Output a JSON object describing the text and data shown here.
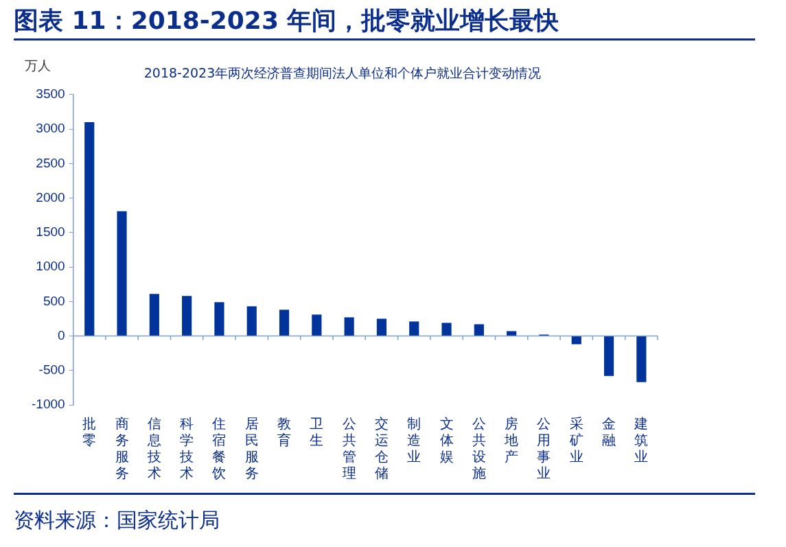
{
  "chart_data": {
    "type": "bar",
    "title": "图表 11：2018-2023 年间，批零就业增长最快",
    "subtitle": "2018-2023年两次经济普查期间法人单位和个体户就业合计变动情况",
    "ylabel": "万人",
    "categories": [
      "批零",
      "商务服务",
      "信息技术",
      "科学技术",
      "住宿餐饮",
      "居民服务",
      "教育",
      "卫生",
      "公共管理",
      "交运仓储",
      "制造业",
      "文体娱",
      "公共设施",
      "房地产",
      "公用事业",
      "采矿业",
      "金融",
      "建筑业"
    ],
    "series": [
      {
        "color": "#00349a",
        "values": [
          3100,
          1810,
          610,
          580,
          490,
          430,
          380,
          310,
          270,
          250,
          210,
          190,
          170,
          70,
          20,
          -120,
          -580,
          -670
        ]
      }
    ],
    "ylim": [
      -1000,
      3500
    ],
    "yticks": [
      -1000,
      -500,
      0,
      500,
      1000,
      1500,
      2000,
      2500,
      3000,
      3500
    ],
    "grid": false,
    "legend": false,
    "ref_lines": [
      {
        "axis": "y",
        "value": 0,
        "color": "#7f9fc9"
      }
    ],
    "annotations": [
      "资料来源：国家统计局"
    ]
  }
}
